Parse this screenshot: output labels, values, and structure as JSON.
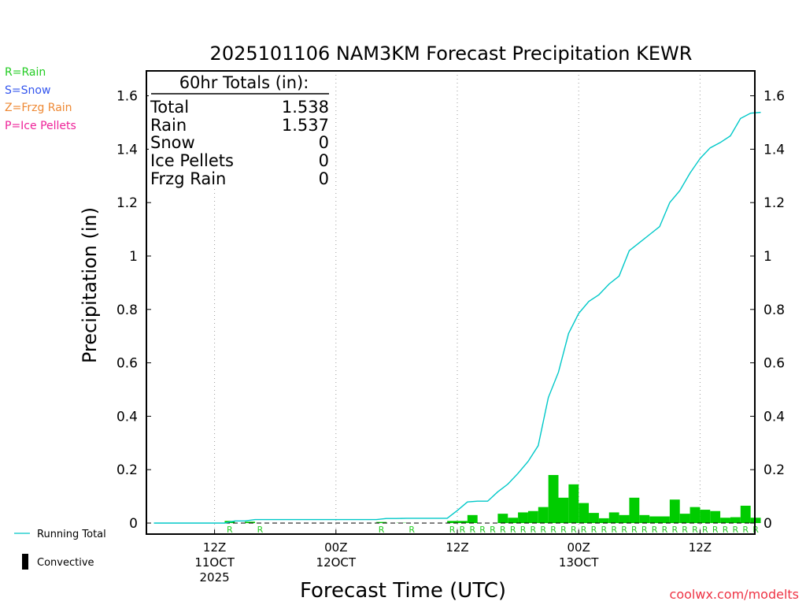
{
  "chart_data": {
    "type": "bar+line",
    "title": "2025101106 NAM3KM Forecast Precipitation KEWR",
    "xlabel": "Forecast Time (UTC)",
    "ylabel": "Precipitation (in)",
    "ylim": [
      -0.04,
      1.7
    ],
    "yticks": [
      0,
      0.2,
      0.4,
      0.6,
      0.8,
      1,
      1.2,
      1.4,
      1.6
    ],
    "ytick_labels": [
      "0",
      "0.2",
      "0.4",
      "0.6",
      "0.8",
      "1",
      "1.2",
      "1.4",
      "1.6"
    ],
    "xlim_hours": [
      0,
      60
    ],
    "x_ticks": [
      {
        "hour": 6,
        "label": "12Z",
        "sub": "11OCT",
        "sub2": "2025"
      },
      {
        "hour": 18,
        "label": "00Z",
        "sub": "12OCT",
        "sub2": ""
      },
      {
        "hour": 30,
        "label": "12Z",
        "sub": "",
        "sub2": ""
      },
      {
        "hour": 42,
        "label": "00Z",
        "sub": "13OCT",
        "sub2": ""
      },
      {
        "hour": 54,
        "label": "12Z",
        "sub": "",
        "sub2": ""
      }
    ],
    "hourly_hours": [
      1,
      2,
      3,
      4,
      5,
      6,
      7,
      8,
      9,
      10,
      11,
      12,
      13,
      14,
      15,
      16,
      17,
      18,
      19,
      20,
      21,
      22,
      23,
      24,
      25,
      26,
      27,
      28,
      29,
      30,
      31,
      32,
      33,
      34,
      35,
      36,
      37,
      38,
      39,
      40,
      41,
      42,
      43,
      44,
      45,
      46,
      47,
      48,
      49,
      50,
      51,
      52,
      53,
      54,
      55,
      56,
      57,
      58,
      59,
      60
    ],
    "series": [
      {
        "name": "Rain",
        "color": "#00cc00",
        "values": [
          0,
          0,
          0,
          0,
          0,
          0,
          0,
          0.008,
          0,
          0.005,
          0,
          0,
          0,
          0,
          0,
          0,
          0,
          0,
          0,
          0,
          0,
          0,
          0.004,
          0,
          0.001,
          0,
          0,
          0,
          0,
          0.008,
          0.008,
          0.03,
          0,
          0,
          0.035,
          0.02,
          0.04,
          0.045,
          0.06,
          0.18,
          0.095,
          0.145,
          0.075,
          0.038,
          0.018,
          0.04,
          0.03,
          0.095,
          0.03,
          0.025,
          0.025,
          0.088,
          0.035,
          0.06,
          0.05,
          0.045,
          0.02,
          0.022,
          0.065,
          0.02
        ]
      },
      {
        "name": "Running Total",
        "color": "#00c8c8",
        "values": [
          0,
          0,
          0,
          0,
          0,
          0,
          0,
          0.008,
          0.008,
          0.013,
          0.013,
          0.013,
          0.013,
          0.013,
          0.013,
          0.013,
          0.013,
          0.013,
          0.013,
          0.013,
          0.013,
          0.013,
          0.017,
          0.017,
          0.018,
          0.018,
          0.018,
          0.018,
          0.018,
          0.047,
          0.079,
          0.082,
          0.082,
          0.117,
          0.146,
          0.186,
          0.231,
          0.29,
          0.47,
          0.565,
          0.71,
          0.785,
          0.83,
          0.855,
          0.895,
          0.925,
          1.02,
          1.05,
          1.08,
          1.11,
          1.2,
          1.245,
          1.31,
          1.365,
          1.405,
          1.425,
          1.45,
          1.515,
          1.535,
          1.538
        ]
      }
    ],
    "rain_markers_hours": [
      8,
      11,
      23,
      26,
      30,
      31,
      32,
      33,
      34,
      35,
      36,
      37,
      38,
      39,
      40,
      41,
      42,
      43,
      44,
      45,
      46,
      47,
      48,
      49,
      50,
      51,
      52,
      53,
      54,
      55,
      56,
      57,
      58,
      59,
      60
    ],
    "rain_marker_text": "R",
    "legend": {
      "items": [
        {
          "label": "R=Rain",
          "color": "#22cc22"
        },
        {
          "label": "S=Snow",
          "color": "#3355ee"
        },
        {
          "label": "Z=Frzg Rain",
          "color": "#ee8833"
        },
        {
          "label": "P=Ice Pellets",
          "color": "#ee2299"
        }
      ],
      "line_label": "Running Total",
      "line_color": "#00c8c8",
      "bar_label": "Convective"
    },
    "totals": {
      "header": "60hr Totals (in):",
      "rows": [
        {
          "label": "Total",
          "value": "1.538"
        },
        {
          "label": "Rain",
          "value": "1.537"
        },
        {
          "label": "Snow",
          "value": "0"
        },
        {
          "label": "Ice Pellets",
          "value": "0"
        },
        {
          "label": "Frzg Rain",
          "value": "0"
        }
      ]
    },
    "credit": "coolwx.com/modelts",
    "credit_color": "#ee3344"
  }
}
